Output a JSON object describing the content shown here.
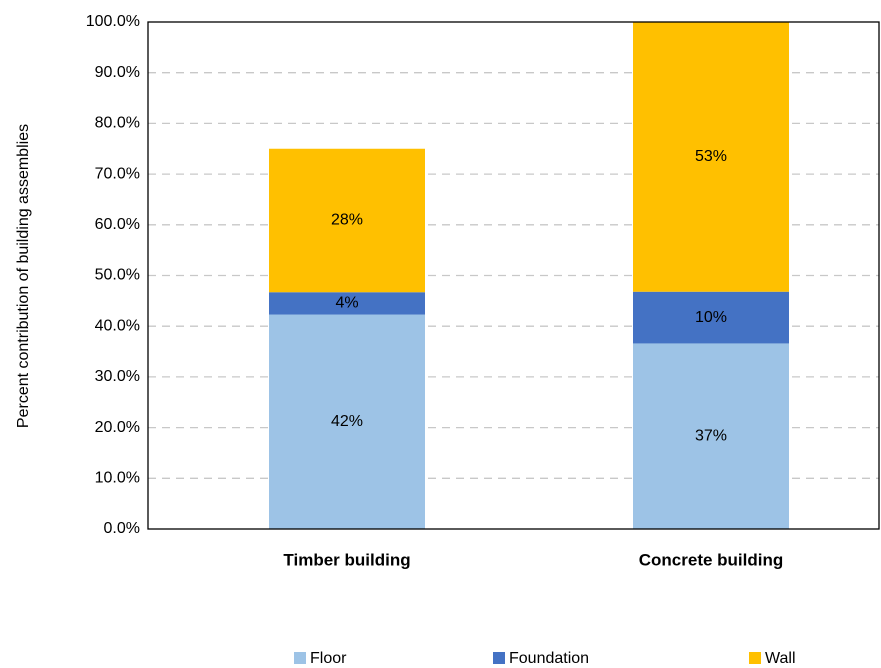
{
  "chart_data": {
    "type": "stacked_bar",
    "y_axis_label": "Percent contribution of building  assemblies",
    "categories": [
      "Timber building",
      "Concrete building"
    ],
    "series": [
      {
        "name": "Floor",
        "color": "#9dc3e6",
        "values": [
          42.3,
          36.6
        ],
        "value_labels": [
          "42%",
          "37%"
        ]
      },
      {
        "name": "Foundation",
        "color": "#4472c4",
        "values": [
          4.4,
          10.2
        ],
        "value_labels": [
          "4%",
          "10%"
        ]
      },
      {
        "name": "Wall",
        "color": "#ffc000",
        "values": [
          28.3,
          53.2
        ],
        "value_labels": [
          "28%",
          "53%"
        ]
      }
    ],
    "ylim": [
      0,
      100
    ],
    "yticks": [
      {
        "value": 0,
        "label": "0.0%"
      },
      {
        "value": 10,
        "label": "10.0%"
      },
      {
        "value": 20,
        "label": "20.0%"
      },
      {
        "value": 30,
        "label": "30.0%"
      },
      {
        "value": 40,
        "label": "40.0%"
      },
      {
        "value": 50,
        "label": "50.0%"
      },
      {
        "value": 60,
        "label": "60.0%"
      },
      {
        "value": 70,
        "label": "70.0%"
      },
      {
        "value": 80,
        "label": "80.0%"
      },
      {
        "value": 90,
        "label": "90.0%"
      },
      {
        "value": 100,
        "label": "100.0%"
      }
    ],
    "grid": true,
    "legend": "bottom"
  }
}
